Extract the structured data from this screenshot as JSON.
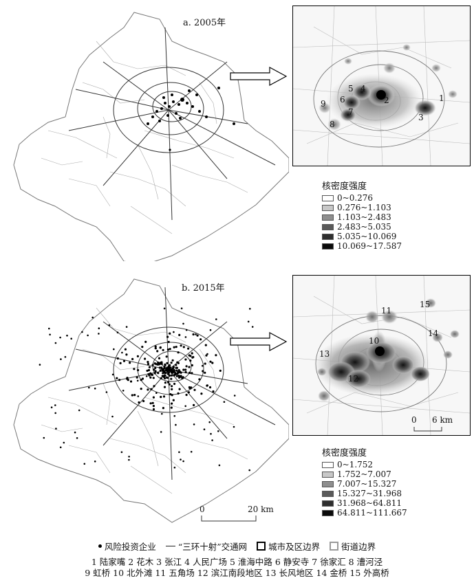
{
  "panel_a": {
    "title": "a. 2005年",
    "legend_title": "核密度强度",
    "legend_classes": [
      "0~0.276",
      "0.276~1.103",
      "1.103~2.483",
      "2.483~5.035",
      "5.035~10.069",
      "10.069~17.587"
    ],
    "legend_colors": [
      "#ffffff",
      "#c8c8c8",
      "#8e8e8e",
      "#5a5a5a",
      "#2e2e2e",
      "#0a0a0a"
    ],
    "inset_labels": [
      "1",
      "2",
      "3",
      "4",
      "5",
      "6",
      "7",
      "8",
      "9"
    ]
  },
  "panel_b": {
    "title": "b. 2015年",
    "legend_title": "核密度强度",
    "legend_classes": [
      "0~1.752",
      "1.752~7.007",
      "7.007~15.327",
      "15.327~31.968",
      "31.968~64.811",
      "64.811~111.667"
    ],
    "legend_colors": [
      "#ffffff",
      "#c8c8c8",
      "#8e8e8e",
      "#5a5a5a",
      "#2e2e2e",
      "#0a0a0a"
    ],
    "inset_labels": [
      "10",
      "11",
      "12",
      "13",
      "14",
      "15"
    ],
    "inset_scale": {
      "start": "0",
      "end": "6 km"
    },
    "main_scale": {
      "start": "0",
      "end": "20 km"
    }
  },
  "bottom_legend": {
    "enterprise": "风险投资企业",
    "transport": "“三环十射”交通网",
    "city_boundary": "城市及区边界",
    "street_boundary": "街道边界"
  },
  "place_names_line1": "1 陆家嘴  2 花木  3 张江  4 人民广场  5 淮海中路  6 静安寺  7 徐家汇  8 漕河泾",
  "place_names_line2": "9 虹桥  10 北外滩  11 五角场  12 滨江南段地区  13 长风地区  14 金桥  15 外高桥"
}
